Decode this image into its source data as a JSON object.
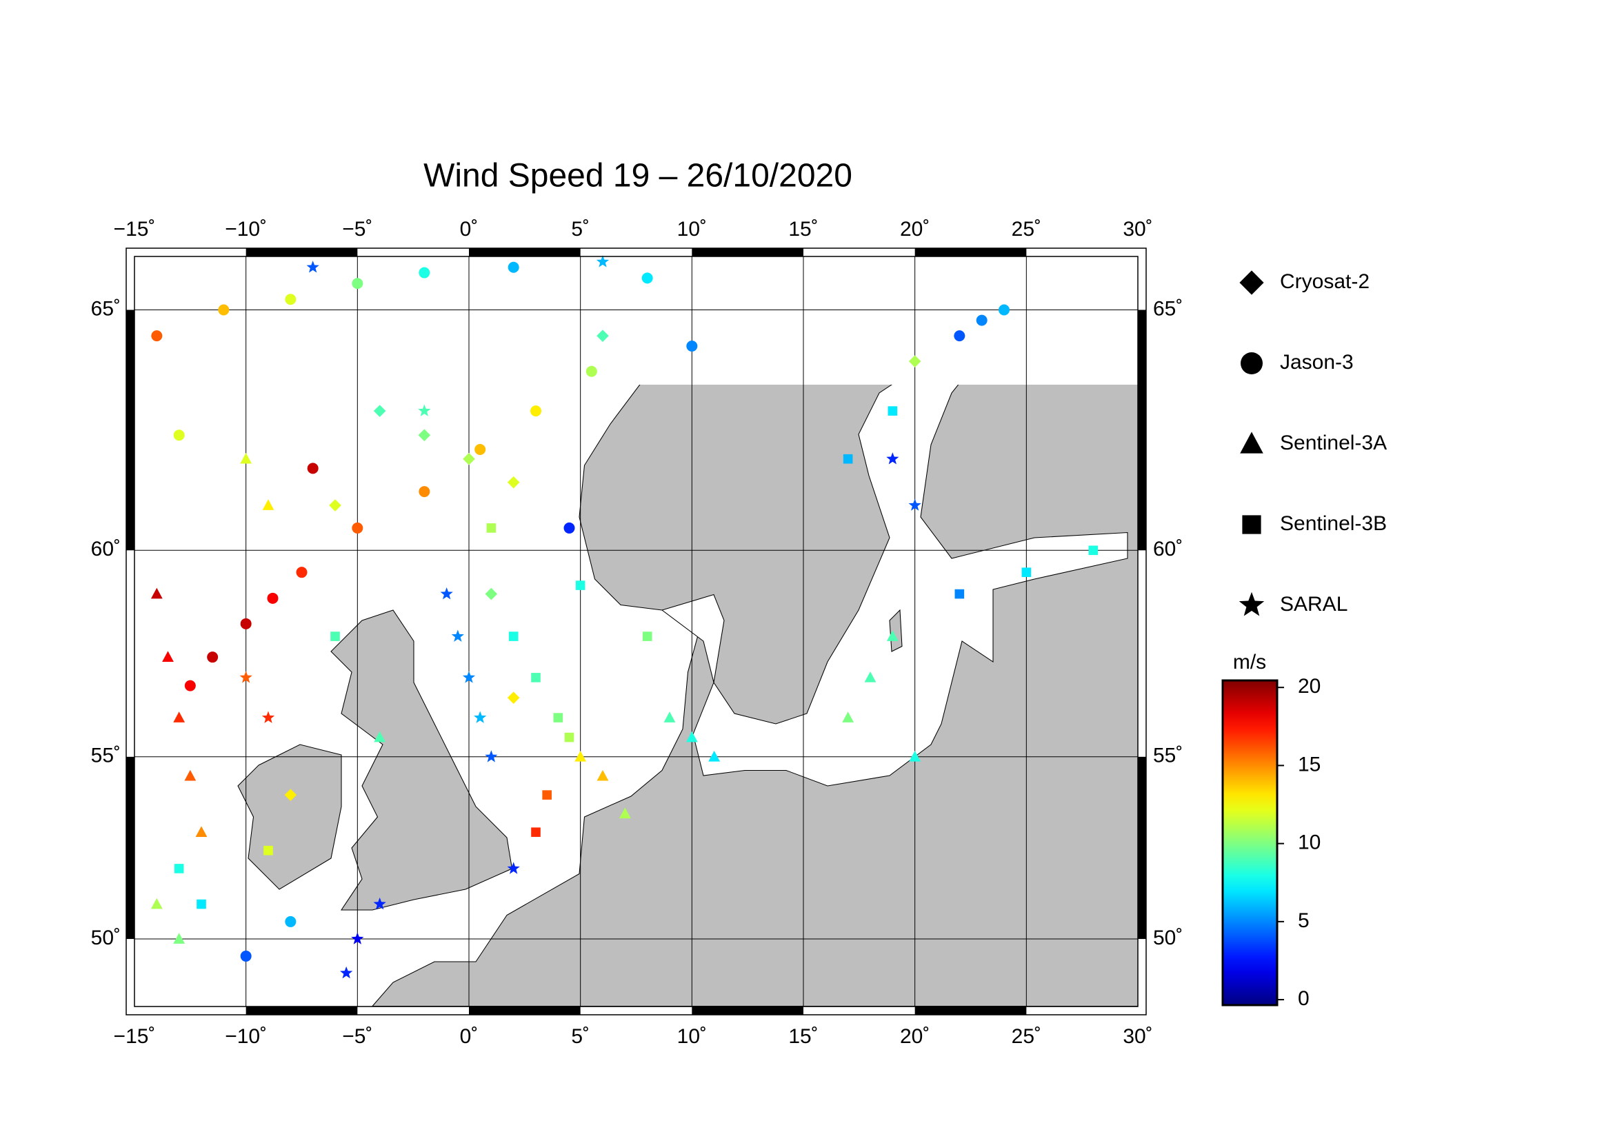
{
  "chart_data": {
    "type": "scatter",
    "title": "Wind Speed 19 – 26/10/2020",
    "projection": "mercator",
    "grid": true,
    "xlim": [
      -15,
      30
    ],
    "ylim": [
      48.0,
      66.0
    ],
    "xticks": [
      {
        "value": -15,
        "label": "−15˚"
      },
      {
        "value": -10,
        "label": "−10˚"
      },
      {
        "value": -5,
        "label": "−5˚"
      },
      {
        "value": 0,
        "label": "0˚"
      },
      {
        "value": 5,
        "label": "5˚"
      },
      {
        "value": 10,
        "label": "10˚"
      },
      {
        "value": 15,
        "label": "15˚"
      },
      {
        "value": 20,
        "label": "20˚"
      },
      {
        "value": 25,
        "label": "25˚"
      },
      {
        "value": 30,
        "label": "30˚"
      }
    ],
    "yticks": [
      {
        "value": 50,
        "label": "50˚"
      },
      {
        "value": 55,
        "label": "55˚"
      },
      {
        "value": 60,
        "label": "60˚"
      },
      {
        "value": 65,
        "label": "65˚"
      }
    ],
    "colorbar": {
      "label": "m/s",
      "colormap": "jet",
      "lim": [
        -0.35,
        20.45
      ],
      "ticks": [
        0,
        5,
        10,
        15,
        20
      ]
    },
    "series": [
      {
        "name": "Cryosat-2",
        "marker": "diamond",
        "x": [
          -4,
          -2,
          0,
          2,
          1,
          20,
          -8,
          2,
          -6,
          6
        ],
        "y": [
          63,
          62.5,
          62,
          61.5,
          59,
          64,
          54,
          56.5,
          61,
          64.5
        ],
        "values": [
          9,
          10,
          11,
          12,
          10,
          11,
          13,
          13,
          12,
          9
        ]
      },
      {
        "name": "Jason-3",
        "marker": "circle",
        "x": [
          -12.5,
          -11.5,
          -10,
          -8.8,
          -7.5,
          -5,
          -2,
          0.5,
          3,
          5.5,
          -14,
          -11,
          -8,
          -5,
          -2,
          2,
          8,
          22,
          23,
          4.5,
          -10,
          -8,
          -13,
          -7,
          10,
          24
        ],
        "y": [
          56.8,
          57.5,
          58.3,
          58.9,
          59.5,
          60.5,
          61.3,
          62.2,
          63,
          63.8,
          64.5,
          65,
          65.2,
          65.5,
          65.7,
          65.8,
          65.6,
          64.5,
          64.8,
          60.5,
          49.5,
          50.5,
          62.5,
          61.8,
          64.3,
          65
        ],
        "values": [
          18,
          19,
          19,
          18,
          17,
          16,
          15,
          14,
          13,
          11,
          16,
          14,
          12,
          10,
          8,
          6,
          7,
          4,
          5,
          3,
          4,
          6,
          12,
          19,
          5,
          6
        ]
      },
      {
        "name": "Sentinel-3A",
        "marker": "triangle",
        "x": [
          -14,
          -13.5,
          -13,
          -12.5,
          -12,
          9,
          10,
          18,
          17,
          20,
          -14,
          -13,
          5,
          6,
          -10,
          -9,
          11,
          19,
          -4,
          7
        ],
        "y": [
          59,
          57.5,
          56,
          54.5,
          53,
          56,
          55.5,
          57,
          56,
          55,
          51,
          50,
          55,
          54.5,
          62,
          61,
          55,
          58,
          55.5,
          53.5
        ],
        "values": [
          19,
          18,
          17,
          16,
          15,
          9,
          8,
          9,
          10,
          8,
          11,
          10,
          13,
          14,
          12,
          13,
          7,
          9,
          9,
          11
        ]
      },
      {
        "name": "Sentinel-3B",
        "marker": "square",
        "x": [
          2,
          3,
          4,
          4.5,
          3.5,
          3,
          -13,
          -12,
          8,
          17,
          19,
          22,
          25,
          28,
          -6,
          5,
          1,
          -9
        ],
        "y": [
          58,
          57,
          56,
          55.5,
          54,
          53,
          52,
          51,
          58,
          62,
          63,
          59,
          59.5,
          60,
          58,
          59.2,
          60.5,
          52.5
        ],
        "values": [
          8,
          9,
          10,
          11,
          16,
          17,
          8,
          7,
          10,
          6,
          7,
          5,
          7,
          8,
          9,
          8,
          11,
          12
        ]
      },
      {
        "name": "SARAL",
        "marker": "star",
        "x": [
          -1,
          -0.5,
          0,
          0.5,
          1,
          2,
          -4,
          -5,
          -5.5,
          -10,
          -9,
          20,
          19,
          -7,
          6,
          -2
        ],
        "y": [
          59,
          58,
          57,
          56,
          55,
          52,
          51,
          50,
          49,
          57,
          56,
          61,
          62,
          65.8,
          65.9,
          63
        ],
        "values": [
          4,
          5,
          5,
          6,
          4,
          3,
          3,
          2,
          3,
          16,
          17,
          4,
          3,
          4,
          6,
          9
        ]
      }
    ]
  }
}
